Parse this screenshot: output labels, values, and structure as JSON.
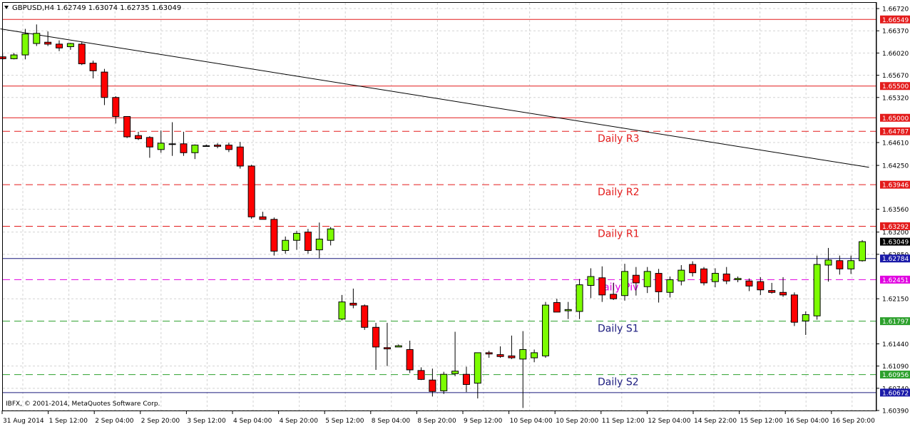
{
  "header": {
    "symbol_line": "GBPUSD,H4  1.62749 1.63074 1.62735 1.63049"
  },
  "footer": {
    "copyright": "IBFX, © 2001-2014, MetaQuotes Software Corp."
  },
  "colors": {
    "bull": "#7cfc00",
    "bear": "#ff0000",
    "grid": "#d3d3d3",
    "resistance_line": "#e31b1b",
    "support_line": "#2ca02c",
    "pivot_line": "#e000e0",
    "blue_line": "#1a1a7e",
    "trendline": "#000000"
  },
  "chart_data": {
    "type": "candlestick",
    "symbol": "GBPUSD",
    "timeframe": "H4",
    "ohlc_header": {
      "open": 1.62749,
      "high": 1.63074,
      "low": 1.62735,
      "close": 1.63049
    },
    "ylim": [
      1.6039,
      1.6681
    ],
    "y_ticks": [
      "1.66720",
      "1.66370",
      "1.66020",
      "1.65670",
      "1.65320",
      "1.64610",
      "1.64250",
      "1.63560",
      "1.63200",
      "1.62850",
      "1.62150",
      "1.61440",
      "1.61090",
      "1.60740",
      "1.60390"
    ],
    "x_ticks": [
      "31 Aug 2014",
      "1 Sep 12:00",
      "2 Sep 04:00",
      "2 Sep 20:00",
      "3 Sep 12:00",
      "4 Sep 04:00",
      "4 Sep 20:00",
      "5 Sep 12:00",
      "8 Sep 04:00",
      "8 Sep 20:00",
      "9 Sep 12:00",
      "10 Sep 04:00",
      "10 Sep 20:00",
      "11 Sep 12:00",
      "12 Sep 04:00",
      "14 Sep 22:00",
      "15 Sep 12:00",
      "16 Sep 04:00",
      "16 Sep 20:00"
    ],
    "grid": true,
    "horizontal_levels": [
      {
        "price": 1.66549,
        "label": "1.66549",
        "style": "solid",
        "color": "#e31b1b",
        "tag_bg": "#e31b1b"
      },
      {
        "price": 1.655,
        "label": "1.65500",
        "style": "solid",
        "color": "#e31b1b",
        "tag_bg": "#e31b1b"
      },
      {
        "price": 1.65,
        "label": "1.65000",
        "style": "solid",
        "color": "#e31b1b",
        "tag_bg": "#e31b1b"
      },
      {
        "price": 1.64787,
        "label": "1.64787",
        "style": "dashed",
        "color": "#e31b1b",
        "tag_bg": "#e31b1b",
        "name": "Daily R3"
      },
      {
        "price": 1.63946,
        "label": "1.63946",
        "style": "dashed",
        "color": "#e31b1b",
        "tag_bg": "#e31b1b",
        "name": "Daily R2"
      },
      {
        "price": 1.63292,
        "label": "1.63292",
        "style": "dashed",
        "color": "#e31b1b",
        "tag_bg": "#e31b1b",
        "name": "Daily R1"
      },
      {
        "price": 1.62784,
        "label": "1.62784",
        "style": "solid",
        "color": "#1a1a7e",
        "tag_bg": "#1a1aa8"
      },
      {
        "price": 1.62451,
        "label": "1.62451",
        "style": "dashed",
        "color": "#e000e0",
        "tag_bg": "#e000e0",
        "name": "aily Piv"
      },
      {
        "price": 1.61797,
        "label": "1.61797",
        "style": "dashed",
        "color": "#2ca02c",
        "tag_bg": "#2ca02c",
        "name": "Daily S1"
      },
      {
        "price": 1.60956,
        "label": "1.60956",
        "style": "dashed",
        "color": "#2ca02c",
        "tag_bg": "#2ca02c",
        "name": "Daily S2"
      },
      {
        "price": 1.60672,
        "label": "1.60672",
        "style": "solid",
        "color": "#1a1a7e",
        "tag_bg": "#1a1aa8"
      }
    ],
    "current_price": {
      "price": 1.63049,
      "label": "1.63049"
    },
    "trendline": {
      "from": {
        "index": -0.2,
        "price": 1.664
      },
      "to": {
        "index": 76.6,
        "price": 1.6422
      }
    },
    "candles": [
      {
        "o": 1.6596,
        "h": 1.6601,
        "l": 1.6591,
        "c": 1.6593
      },
      {
        "o": 1.6593,
        "h": 1.6602,
        "l": 1.6592,
        "c": 1.6599
      },
      {
        "o": 1.6599,
        "h": 1.664,
        "l": 1.6592,
        "c": 1.6632
      },
      {
        "o": 1.6617,
        "h": 1.6647,
        "l": 1.6613,
        "c": 1.6633
      },
      {
        "o": 1.6619,
        "h": 1.6636,
        "l": 1.6613,
        "c": 1.6616
      },
      {
        "o": 1.6616,
        "h": 1.6622,
        "l": 1.6605,
        "c": 1.661
      },
      {
        "o": 1.6612,
        "h": 1.6618,
        "l": 1.6607,
        "c": 1.6617
      },
      {
        "o": 1.6616,
        "h": 1.6619,
        "l": 1.6583,
        "c": 1.6585
      },
      {
        "o": 1.6586,
        "h": 1.659,
        "l": 1.6562,
        "c": 1.6574
      },
      {
        "o": 1.6572,
        "h": 1.6577,
        "l": 1.652,
        "c": 1.6532
      },
      {
        "o": 1.6532,
        "h": 1.6534,
        "l": 1.6491,
        "c": 1.6502
      },
      {
        "o": 1.6502,
        "h": 1.6502,
        "l": 1.6468,
        "c": 1.647
      },
      {
        "o": 1.6472,
        "h": 1.6478,
        "l": 1.6465,
        "c": 1.6467
      },
      {
        "o": 1.6469,
        "h": 1.6471,
        "l": 1.6437,
        "c": 1.6454
      },
      {
        "o": 1.645,
        "h": 1.648,
        "l": 1.6445,
        "c": 1.646
      },
      {
        "o": 1.6459,
        "h": 1.6493,
        "l": 1.644,
        "c": 1.6458
      },
      {
        "o": 1.6459,
        "h": 1.6478,
        "l": 1.644,
        "c": 1.6445
      },
      {
        "o": 1.6445,
        "h": 1.6458,
        "l": 1.6435,
        "c": 1.6457
      },
      {
        "o": 1.6456,
        "h": 1.6458,
        "l": 1.6455,
        "c": 1.6456
      },
      {
        "o": 1.6457,
        "h": 1.646,
        "l": 1.6452,
        "c": 1.6455
      },
      {
        "o": 1.6457,
        "h": 1.6461,
        "l": 1.6446,
        "c": 1.645
      },
      {
        "o": 1.6454,
        "h": 1.6462,
        "l": 1.642,
        "c": 1.6424
      },
      {
        "o": 1.6424,
        "h": 1.6426,
        "l": 1.6341,
        "c": 1.6344
      },
      {
        "o": 1.6344,
        "h": 1.6352,
        "l": 1.634,
        "c": 1.634
      },
      {
        "o": 1.634,
        "h": 1.6343,
        "l": 1.6283,
        "c": 1.629
      },
      {
        "o": 1.6291,
        "h": 1.6313,
        "l": 1.6286,
        "c": 1.6307
      },
      {
        "o": 1.6307,
        "h": 1.6322,
        "l": 1.6292,
        "c": 1.6318
      },
      {
        "o": 1.632,
        "h": 1.6325,
        "l": 1.6286,
        "c": 1.6291
      },
      {
        "o": 1.6292,
        "h": 1.6335,
        "l": 1.6279,
        "c": 1.6309
      },
      {
        "o": 1.6307,
        "h": 1.6328,
        "l": 1.6299,
        "c": 1.6325
      },
      {
        "o": 1.6183,
        "h": 1.6221,
        "l": 1.6181,
        "c": 1.621
      },
      {
        "o": 1.6208,
        "h": 1.6231,
        "l": 1.62,
        "c": 1.6205
      },
      {
        "o": 1.6204,
        "h": 1.6206,
        "l": 1.6166,
        "c": 1.617
      },
      {
        "o": 1.617,
        "h": 1.6177,
        "l": 1.6103,
        "c": 1.6139
      },
      {
        "o": 1.6138,
        "h": 1.6177,
        "l": 1.6109,
        "c": 1.6136
      },
      {
        "o": 1.6139,
        "h": 1.6143,
        "l": 1.614,
        "c": 1.6141
      },
      {
        "o": 1.6135,
        "h": 1.6149,
        "l": 1.6098,
        "c": 1.6103
      },
      {
        "o": 1.6102,
        "h": 1.6107,
        "l": 1.6087,
        "c": 1.6088
      },
      {
        "o": 1.6087,
        "h": 1.6105,
        "l": 1.6061,
        "c": 1.6069
      },
      {
        "o": 1.607,
        "h": 1.61,
        "l": 1.6065,
        "c": 1.6096
      },
      {
        "o": 1.6097,
        "h": 1.6163,
        "l": 1.6093,
        "c": 1.6101
      },
      {
        "o": 1.6096,
        "h": 1.6108,
        "l": 1.6068,
        "c": 1.608
      },
      {
        "o": 1.6082,
        "h": 1.6129,
        "l": 1.6058,
        "c": 1.613
      },
      {
        "o": 1.613,
        "h": 1.6133,
        "l": 1.6122,
        "c": 1.6128
      },
      {
        "o": 1.6127,
        "h": 1.614,
        "l": 1.6122,
        "c": 1.6124
      },
      {
        "o": 1.6125,
        "h": 1.6157,
        "l": 1.612,
        "c": 1.6122
      },
      {
        "o": 1.612,
        "h": 1.6164,
        "l": 1.6043,
        "c": 1.6135
      },
      {
        "o": 1.6122,
        "h": 1.6135,
        "l": 1.6115,
        "c": 1.613
      },
      {
        "o": 1.6125,
        "h": 1.621,
        "l": 1.6122,
        "c": 1.6205
      },
      {
        "o": 1.6209,
        "h": 1.6215,
        "l": 1.6194,
        "c": 1.6194
      },
      {
        "o": 1.6196,
        "h": 1.621,
        "l": 1.6183,
        "c": 1.6198
      },
      {
        "o": 1.6195,
        "h": 1.6246,
        "l": 1.6183,
        "c": 1.6237
      },
      {
        "o": 1.6236,
        "h": 1.6263,
        "l": 1.6216,
        "c": 1.625
      },
      {
        "o": 1.6248,
        "h": 1.6266,
        "l": 1.621,
        "c": 1.6221
      },
      {
        "o": 1.6222,
        "h": 1.624,
        "l": 1.6213,
        "c": 1.6215
      },
      {
        "o": 1.622,
        "h": 1.627,
        "l": 1.6212,
        "c": 1.6258
      },
      {
        "o": 1.6252,
        "h": 1.6265,
        "l": 1.622,
        "c": 1.624
      },
      {
        "o": 1.6234,
        "h": 1.6265,
        "l": 1.6224,
        "c": 1.6258
      },
      {
        "o": 1.6255,
        "h": 1.6262,
        "l": 1.6209,
        "c": 1.6226
      },
      {
        "o": 1.6225,
        "h": 1.625,
        "l": 1.6217,
        "c": 1.6245
      },
      {
        "o": 1.6243,
        "h": 1.6268,
        "l": 1.6236,
        "c": 1.626
      },
      {
        "o": 1.6269,
        "h": 1.6274,
        "l": 1.625,
        "c": 1.6256
      },
      {
        "o": 1.6262,
        "h": 1.6265,
        "l": 1.6236,
        "c": 1.624
      },
      {
        "o": 1.6242,
        "h": 1.6263,
        "l": 1.6233,
        "c": 1.6255
      },
      {
        "o": 1.6254,
        "h": 1.6265,
        "l": 1.6238,
        "c": 1.6243
      },
      {
        "o": 1.6245,
        "h": 1.625,
        "l": 1.6241,
        "c": 1.6247
      },
      {
        "o": 1.6243,
        "h": 1.6247,
        "l": 1.6227,
        "c": 1.6235
      },
      {
        "o": 1.6242,
        "h": 1.6249,
        "l": 1.6221,
        "c": 1.6229
      },
      {
        "o": 1.6228,
        "h": 1.624,
        "l": 1.6223,
        "c": 1.6225
      },
      {
        "o": 1.6225,
        "h": 1.6249,
        "l": 1.6218,
        "c": 1.6221
      },
      {
        "o": 1.6221,
        "h": 1.6225,
        "l": 1.6172,
        "c": 1.6178
      },
      {
        "o": 1.618,
        "h": 1.6195,
        "l": 1.6158,
        "c": 1.619
      },
      {
        "o": 1.6188,
        "h": 1.6283,
        "l": 1.6182,
        "c": 1.6269
      },
      {
        "o": 1.6268,
        "h": 1.6295,
        "l": 1.6242,
        "c": 1.6276
      },
      {
        "o": 1.6275,
        "h": 1.6283,
        "l": 1.6253,
        "c": 1.6262
      },
      {
        "o": 1.6262,
        "h": 1.6283,
        "l": 1.6254,
        "c": 1.6275
      },
      {
        "o": 1.62749,
        "h": 1.63074,
        "l": 1.62735,
        "c": 1.63049
      }
    ]
  }
}
